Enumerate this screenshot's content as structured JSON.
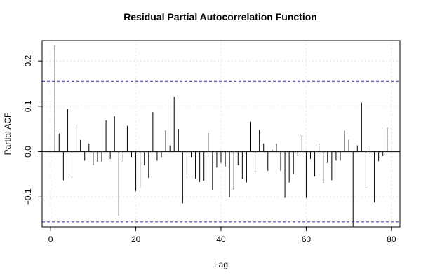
{
  "chart_data": {
    "type": "bar",
    "title": "Residual Partial Autocorrelation Function",
    "xlabel": "Lag",
    "ylabel": "Partial ACF",
    "xlim": [
      -2,
      82
    ],
    "ylim": [
      -0.166,
      0.245
    ],
    "x_ticks": [
      0,
      20,
      40,
      60,
      80
    ],
    "y_ticks": [
      -0.1,
      0.0,
      0.1,
      0.2
    ],
    "x_tick_labels": [
      "0",
      "20",
      "40",
      "60",
      "80"
    ],
    "y_tick_labels": [
      "−0.1",
      "0.0",
      "0.1",
      "0.2"
    ],
    "confidence_bounds": [
      0.155,
      -0.155
    ],
    "grid": true,
    "lags": [
      1,
      2,
      3,
      4,
      5,
      6,
      7,
      8,
      9,
      10,
      11,
      12,
      13,
      14,
      15,
      16,
      17,
      18,
      19,
      20,
      21,
      22,
      23,
      24,
      25,
      26,
      27,
      28,
      29,
      30,
      31,
      32,
      33,
      34,
      35,
      36,
      37,
      38,
      39,
      40,
      41,
      42,
      43,
      44,
      45,
      46,
      47,
      48,
      49,
      50,
      51,
      52,
      53,
      54,
      55,
      56,
      57,
      58,
      59,
      60,
      61,
      62,
      63,
      64,
      65,
      66,
      67,
      68,
      69,
      70,
      71,
      72,
      73,
      74,
      75,
      76,
      77,
      78,
      79
    ],
    "values": [
      0.235,
      0.04,
      -0.063,
      0.094,
      -0.058,
      0.062,
      0.026,
      -0.02,
      0.018,
      -0.03,
      -0.022,
      -0.022,
      0.069,
      -0.016,
      0.078,
      -0.141,
      -0.022,
      0.057,
      -0.012,
      -0.087,
      -0.08,
      -0.03,
      -0.058,
      0.087,
      -0.02,
      -0.012,
      0.047,
      0.014,
      0.121,
      0.05,
      -0.114,
      -0.052,
      -0.012,
      -0.06,
      -0.067,
      -0.064,
      0.041,
      -0.085,
      -0.035,
      -0.025,
      -0.033,
      -0.101,
      -0.084,
      -0.03,
      -0.06,
      -0.068,
      0.066,
      -0.045,
      0.048,
      0.018,
      -0.042,
      0.005,
      0.018,
      -0.042,
      -0.102,
      -0.068,
      -0.05,
      -0.01,
      0.037,
      -0.102,
      -0.016,
      -0.055,
      0.018,
      -0.07,
      -0.025,
      -0.063,
      -0.02,
      -0.02,
      0.046,
      0.026,
      -0.165,
      0.014,
      0.108,
      -0.075,
      0.012,
      -0.112,
      -0.021,
      -0.01,
      0.053
    ],
    "colors": {
      "bars": "#000000",
      "bounds": "#2a2ab8",
      "grid": "#e4e4e4",
      "frame": "#000000"
    }
  }
}
